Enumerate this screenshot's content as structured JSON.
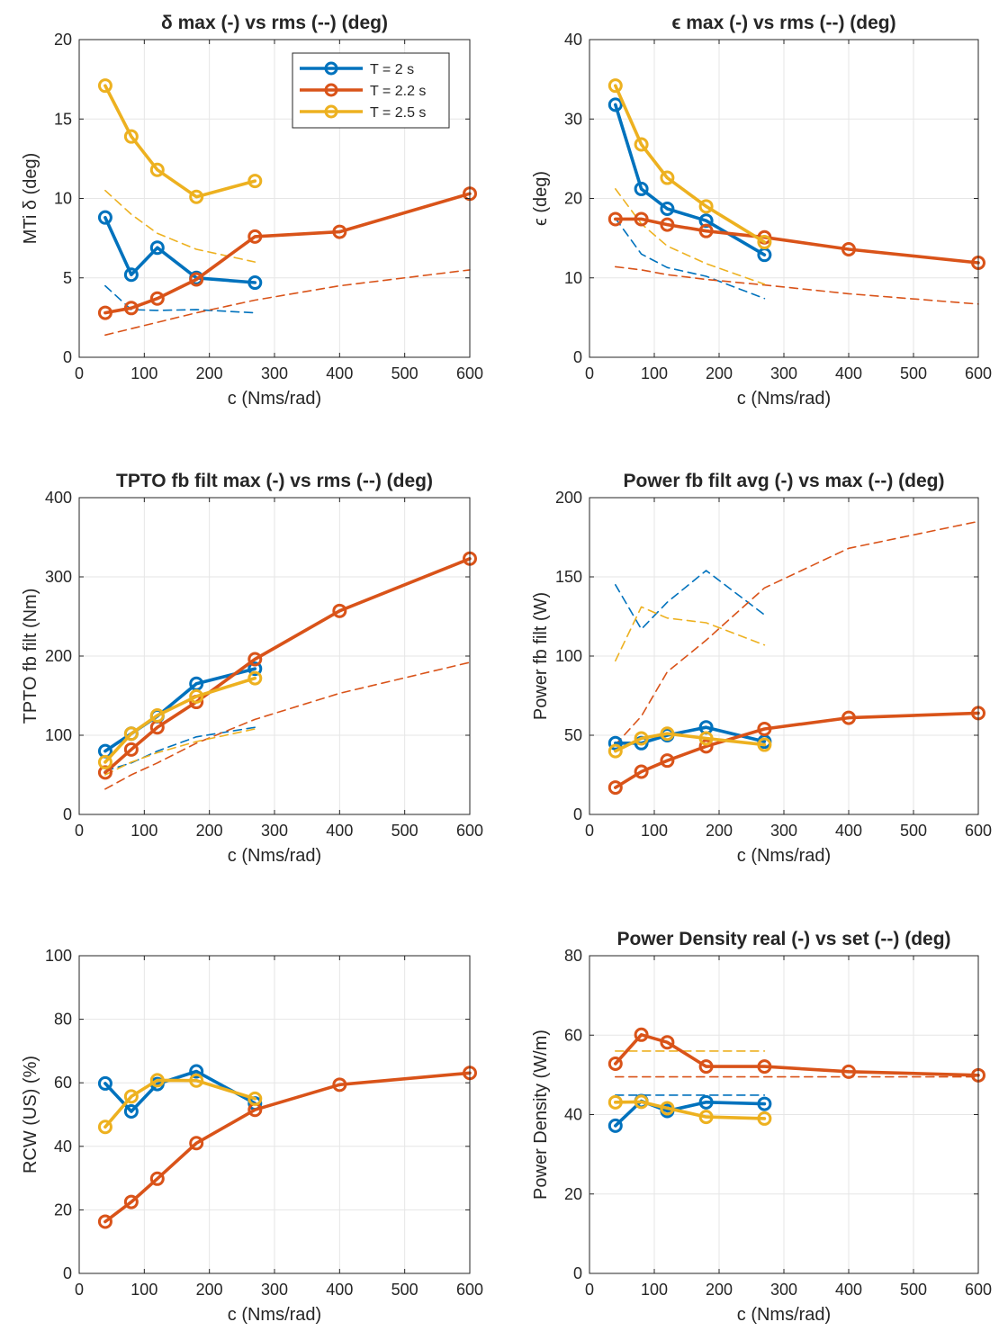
{
  "colors": {
    "T = 2 s": "#0072BD",
    "T = 2.2 s": "#D95319",
    "T = 2.5 s": "#EDB120",
    "grid": "#e6e6e6",
    "axis": "#262626"
  },
  "chart_data": [
    {
      "type": "line",
      "title": "δ max (-) vs rms (--) (deg)",
      "xlabel": "c (Nms/rad)",
      "ylabel": "MTi δ (deg)",
      "xlim": [
        0,
        600
      ],
      "ylim": [
        0,
        20
      ],
      "xticks": [
        0,
        100,
        200,
        300,
        400,
        500,
        600
      ],
      "yticks": [
        0,
        5,
        10,
        15,
        20
      ],
      "grid": true,
      "legend": "top-right",
      "series": [
        {
          "name": "T = 2 s",
          "style": "solid-marker",
          "x": [
            40,
            80,
            120,
            180,
            270
          ],
          "y": [
            8.8,
            5.2,
            6.9,
            5.0,
            4.7
          ]
        },
        {
          "name": "T = 2.2 s",
          "style": "solid-marker",
          "x": [
            40,
            80,
            120,
            180,
            270,
            400,
            600
          ],
          "y": [
            2.8,
            3.1,
            3.7,
            4.9,
            7.6,
            7.9,
            10.3
          ]
        },
        {
          "name": "T = 2.5 s",
          "style": "solid-marker",
          "x": [
            40,
            80,
            120,
            180,
            270
          ],
          "y": [
            17.1,
            13.9,
            11.8,
            10.1,
            11.1
          ]
        },
        {
          "name": "T = 2 s",
          "style": "dashed",
          "x": [
            40,
            80,
            120,
            180,
            270
          ],
          "y": [
            4.5,
            3.0,
            2.95,
            3.0,
            2.8
          ]
        },
        {
          "name": "T = 2.2 s",
          "style": "dashed",
          "x": [
            40,
            80,
            120,
            180,
            270,
            400,
            600
          ],
          "y": [
            1.4,
            1.8,
            2.2,
            2.8,
            3.6,
            4.5,
            5.5
          ]
        },
        {
          "name": "T = 2.5 s",
          "style": "dashed",
          "x": [
            40,
            80,
            120,
            180,
            270
          ],
          "y": [
            10.5,
            9.0,
            7.8,
            6.8,
            6.0
          ]
        }
      ]
    },
    {
      "type": "line",
      "title": "ϵ max (-) vs rms (--) (deg)",
      "xlabel": "c (Nms/rad)",
      "ylabel": "ϵ (deg)",
      "xlim": [
        0,
        600
      ],
      "ylim": [
        0,
        40
      ],
      "xticks": [
        0,
        100,
        200,
        300,
        400,
        500,
        600
      ],
      "yticks": [
        0,
        10,
        20,
        30,
        40
      ],
      "grid": true,
      "series": [
        {
          "name": "T = 2 s",
          "style": "solid-marker",
          "x": [
            40,
            80,
            120,
            180,
            270
          ],
          "y": [
            31.8,
            21.2,
            18.7,
            17.2,
            12.9
          ]
        },
        {
          "name": "T = 2.2 s",
          "style": "solid-marker",
          "x": [
            40,
            80,
            120,
            180,
            270,
            400,
            600
          ],
          "y": [
            17.4,
            17.4,
            16.7,
            15.9,
            15.1,
            13.6,
            11.9
          ]
        },
        {
          "name": "T = 2.5 s",
          "style": "solid-marker",
          "x": [
            40,
            80,
            120,
            180,
            270
          ],
          "y": [
            34.2,
            26.8,
            22.6,
            19.0,
            14.5
          ]
        },
        {
          "name": "T = 2 s",
          "style": "dashed",
          "x": [
            40,
            80,
            120,
            180,
            270
          ],
          "y": [
            17.5,
            13.0,
            11.3,
            10.2,
            7.4
          ]
        },
        {
          "name": "T = 2.2 s",
          "style": "dashed",
          "x": [
            40,
            80,
            120,
            180,
            270,
            400,
            600
          ],
          "y": [
            11.4,
            11.0,
            10.4,
            9.8,
            9.1,
            8.0,
            6.7
          ]
        },
        {
          "name": "T = 2.5 s",
          "style": "dashed",
          "x": [
            40,
            80,
            120,
            180,
            270
          ],
          "y": [
            21.2,
            16.8,
            14.0,
            11.8,
            9.2
          ]
        }
      ]
    },
    {
      "type": "line",
      "title": "TPTO fb filt max (-) vs rms (--) (deg)",
      "xlabel": "c (Nms/rad)",
      "ylabel": "TPTO fb filt (Nm)",
      "xlim": [
        0,
        600
      ],
      "ylim": [
        0,
        400
      ],
      "xticks": [
        0,
        100,
        200,
        300,
        400,
        500,
        600
      ],
      "yticks": [
        0,
        100,
        200,
        300,
        400
      ],
      "grid": true,
      "series": [
        {
          "name": "T = 2 s",
          "style": "solid-marker",
          "x": [
            40,
            80,
            120,
            180,
            270
          ],
          "y": [
            80,
            102,
            124,
            165,
            184
          ]
        },
        {
          "name": "T = 2.2 s",
          "style": "solid-marker",
          "x": [
            40,
            80,
            120,
            180,
            270,
            400,
            600
          ],
          "y": [
            53,
            82,
            110,
            142,
            196,
            257,
            323
          ]
        },
        {
          "name": "T = 2.5 s",
          "style": "solid-marker",
          "x": [
            40,
            80,
            120,
            180,
            270
          ],
          "y": [
            66,
            102,
            125,
            149,
            172
          ]
        },
        {
          "name": "T = 2 s",
          "style": "dashed",
          "x": [
            40,
            80,
            120,
            180,
            270
          ],
          "y": [
            55,
            65,
            80,
            98,
            110
          ]
        },
        {
          "name": "T = 2.2 s",
          "style": "dashed",
          "x": [
            40,
            80,
            120,
            180,
            270,
            400,
            600
          ],
          "y": [
            32,
            50,
            65,
            90,
            120,
            153,
            192
          ]
        },
        {
          "name": "T = 2.5 s",
          "style": "dashed",
          "x": [
            40,
            80,
            120,
            180,
            270
          ],
          "y": [
            50,
            66,
            78,
            92,
            108
          ]
        }
      ]
    },
    {
      "type": "line",
      "title": "Power fb filt avg (-) vs max (--) (deg)",
      "xlabel": "c (Nms/rad)",
      "ylabel": "Power fb filt  (W)",
      "xlim": [
        0,
        600
      ],
      "ylim": [
        0,
        200
      ],
      "xticks": [
        0,
        100,
        200,
        300,
        400,
        500,
        600
      ],
      "yticks": [
        0,
        50,
        100,
        150,
        200
      ],
      "grid": true,
      "series": [
        {
          "name": "T = 2 s",
          "style": "solid-marker",
          "x": [
            40,
            80,
            120,
            180,
            270
          ],
          "y": [
            45,
            45,
            50,
            55,
            46
          ]
        },
        {
          "name": "T = 2.2 s",
          "style": "solid-marker",
          "x": [
            40,
            80,
            120,
            180,
            270,
            400,
            600
          ],
          "y": [
            17,
            27,
            34,
            43,
            54,
            61,
            64
          ]
        },
        {
          "name": "T = 2.5 s",
          "style": "solid-marker",
          "x": [
            40,
            80,
            120,
            180,
            270
          ],
          "y": [
            40,
            48,
            51,
            48,
            44
          ]
        },
        {
          "name": "T = 2 s",
          "style": "dashed",
          "x": [
            40,
            80,
            120,
            180,
            270
          ],
          "y": [
            145,
            117,
            134,
            154,
            126
          ]
        },
        {
          "name": "T = 2.2 s",
          "style": "dashed",
          "x": [
            40,
            80,
            120,
            180,
            270,
            400,
            600
          ],
          "y": [
            44,
            62,
            90,
            110,
            143,
            168,
            185
          ]
        },
        {
          "name": "T = 2.5 s",
          "style": "dashed",
          "x": [
            40,
            80,
            120,
            180,
            270
          ],
          "y": [
            97,
            131,
            124,
            121,
            107
          ]
        }
      ]
    },
    {
      "type": "line",
      "title": "",
      "xlabel": "c (Nms/rad)",
      "ylabel": "RCW (US) (%)",
      "xlim": [
        0,
        600
      ],
      "ylim": [
        0,
        100
      ],
      "xticks": [
        0,
        100,
        200,
        300,
        400,
        500,
        600
      ],
      "yticks": [
        0,
        20,
        40,
        60,
        80,
        100
      ],
      "grid": true,
      "series": [
        {
          "name": "T = 2 s",
          "style": "solid-marker",
          "x": [
            40,
            80,
            120,
            180,
            270
          ],
          "y": [
            59.8,
            51.0,
            59.6,
            63.6,
            53.5
          ]
        },
        {
          "name": "T = 2.2 s",
          "style": "solid-marker",
          "x": [
            40,
            80,
            120,
            180,
            270,
            400,
            600
          ],
          "y": [
            16.3,
            22.5,
            29.8,
            41.0,
            51.5,
            59.4,
            63.1
          ]
        },
        {
          "name": "T = 2.5 s",
          "style": "solid-marker",
          "x": [
            40,
            80,
            120,
            180,
            270
          ],
          "y": [
            46.1,
            55.7,
            60.8,
            60.7,
            55.0
          ]
        }
      ]
    },
    {
      "type": "line",
      "title": "Power Density real (-) vs set (--) (deg)",
      "xlabel": "c (Nms/rad)",
      "ylabel": "Power Density (W/m)",
      "xlim": [
        0,
        600
      ],
      "ylim": [
        0,
        80
      ],
      "xticks": [
        0,
        100,
        200,
        300,
        400,
        500,
        600
      ],
      "yticks": [
        0,
        20,
        40,
        60,
        80
      ],
      "grid": true,
      "series": [
        {
          "name": "T = 2 s",
          "style": "solid-marker",
          "x": [
            40,
            80,
            120,
            180,
            270
          ],
          "y": [
            37.2,
            43.4,
            40.9,
            43.1,
            42.7
          ]
        },
        {
          "name": "T = 2.2 s",
          "style": "solid-marker",
          "x": [
            40,
            80,
            120,
            180,
            270,
            400,
            600
          ],
          "y": [
            52.8,
            60.1,
            58.2,
            52.1,
            52.1,
            50.8,
            49.9
          ]
        },
        {
          "name": "T = 2.5 s",
          "style": "solid-marker",
          "x": [
            40,
            80,
            120,
            180,
            270
          ],
          "y": [
            43.1,
            43.2,
            41.6,
            39.4,
            39.0
          ]
        },
        {
          "name": "T = 2 s",
          "style": "dashed",
          "x": [
            40,
            270
          ],
          "y": [
            44.9,
            44.9
          ]
        },
        {
          "name": "T = 2.2 s",
          "style": "dashed",
          "x": [
            40,
            600
          ],
          "y": [
            49.5,
            49.5
          ]
        },
        {
          "name": "T = 2.5 s",
          "style": "dashed",
          "x": [
            40,
            270
          ],
          "y": [
            56.0,
            56.0
          ]
        }
      ]
    }
  ],
  "legend": {
    "entries": [
      "T = 2 s",
      "T = 2.2 s",
      "T = 2.5 s"
    ]
  }
}
